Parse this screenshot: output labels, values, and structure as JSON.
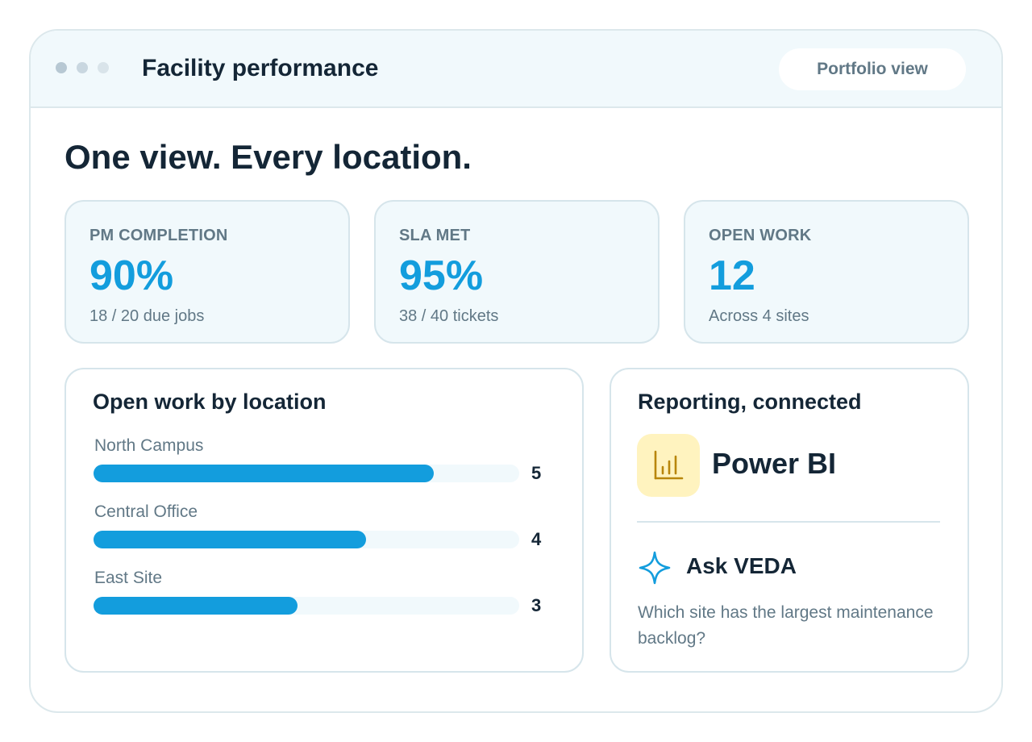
{
  "window": {
    "title": "Facility performance",
    "view_button": "Portfolio view"
  },
  "headline": "One view. Every location.",
  "kpis": [
    {
      "label": "PM COMPLETION",
      "value": "90%",
      "sub": "18 / 20 due jobs"
    },
    {
      "label": "SLA MET",
      "value": "95%",
      "sub": "38 / 40 tickets"
    },
    {
      "label": "OPEN WORK",
      "value": "12",
      "sub": "Across 4 sites"
    }
  ],
  "open_work": {
    "title": "Open work by location",
    "max": 6.25,
    "rows": [
      {
        "location": "North Campus",
        "count": 5
      },
      {
        "location": "Central Office",
        "count": 4
      },
      {
        "location": "East Site",
        "count": 3
      }
    ]
  },
  "reporting": {
    "title": "Reporting, connected",
    "integration_name": "Power BI",
    "integration_icon": "bar-chart-icon",
    "assistant_icon": "sparkle-icon",
    "assistant_title": "Ask VEDA",
    "assistant_prompt": "Which site has the largest maintenance backlog?"
  },
  "colors": {
    "accent": "#139ddd",
    "text": "#142636",
    "muted": "#617886",
    "tint": "#f1f9fc",
    "border": "#d6e5eb",
    "powerbi_tile": "#fff3bf",
    "powerbi_icon": "#b8860b"
  }
}
